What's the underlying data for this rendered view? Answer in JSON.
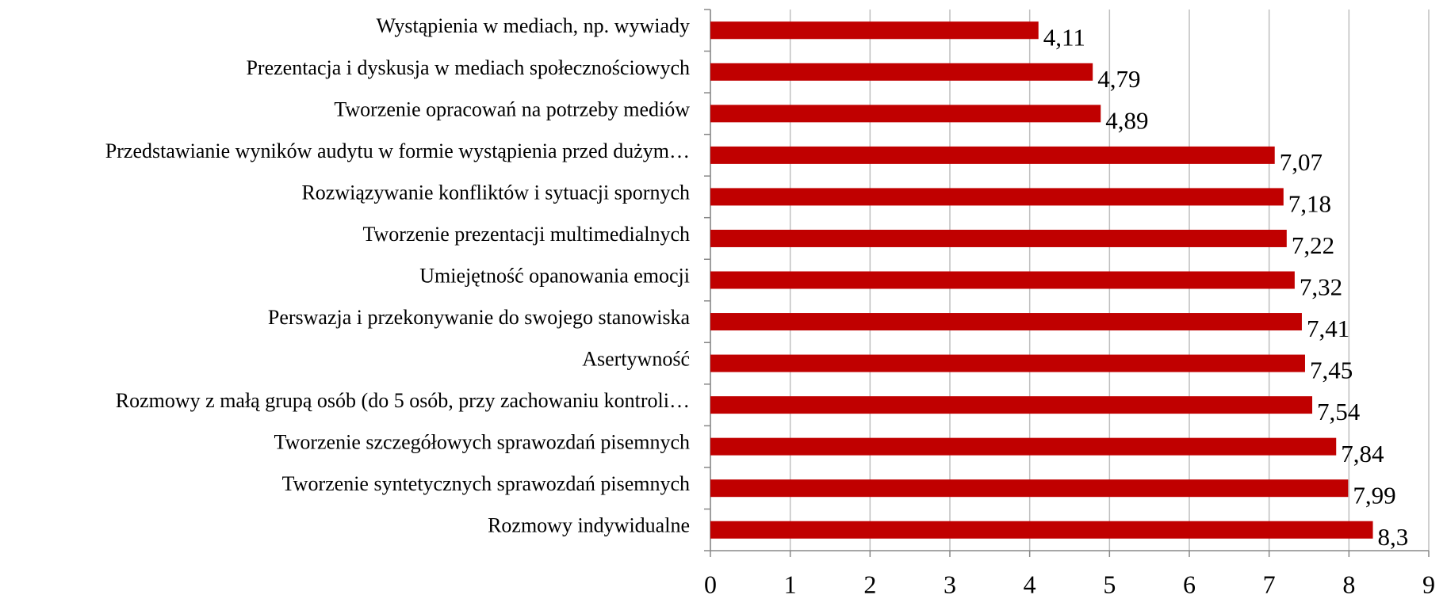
{
  "chart_data": {
    "type": "barh",
    "categories": [
      "Wystąpienia w mediach, np. wywiady",
      "Prezentacja i dyskusja w mediach społecznościowych",
      "Tworzenie opracowań na potrzeby mediów",
      "Przedstawianie wyników audytu w formie wystąpienia przed dużym…",
      "Rozwiązywanie konfliktów i sytuacji spornych",
      "Tworzenie prezentacji multimedialnych",
      "Umiejętność opanowania emocji",
      "Perswazja i przekonywanie do swojego stanowiska",
      "Asertywność",
      "Rozmowy z małą grupą osób (do 5 osób, przy zachowaniu kontroli…",
      "Tworzenie szczegółowych sprawozdań pisemnych",
      "Tworzenie syntetycznych sprawozdań pisemnych",
      "Rozmowy indywidualne"
    ],
    "values": [
      4.11,
      4.79,
      4.89,
      7.07,
      7.18,
      7.22,
      7.32,
      7.41,
      7.45,
      7.54,
      7.84,
      7.99,
      8.3
    ],
    "value_labels": [
      "4,11",
      "4,79",
      "4,89",
      "7,07",
      "7,18",
      "7,22",
      "7,32",
      "7,41",
      "7,45",
      "7,54",
      "7,84",
      "7,99",
      "8,3"
    ],
    "color": "#c00000",
    "xlim": [
      0,
      9
    ],
    "xticks": [
      0,
      1,
      2,
      3,
      4,
      5,
      6,
      7,
      8,
      9
    ],
    "grid": true
  }
}
